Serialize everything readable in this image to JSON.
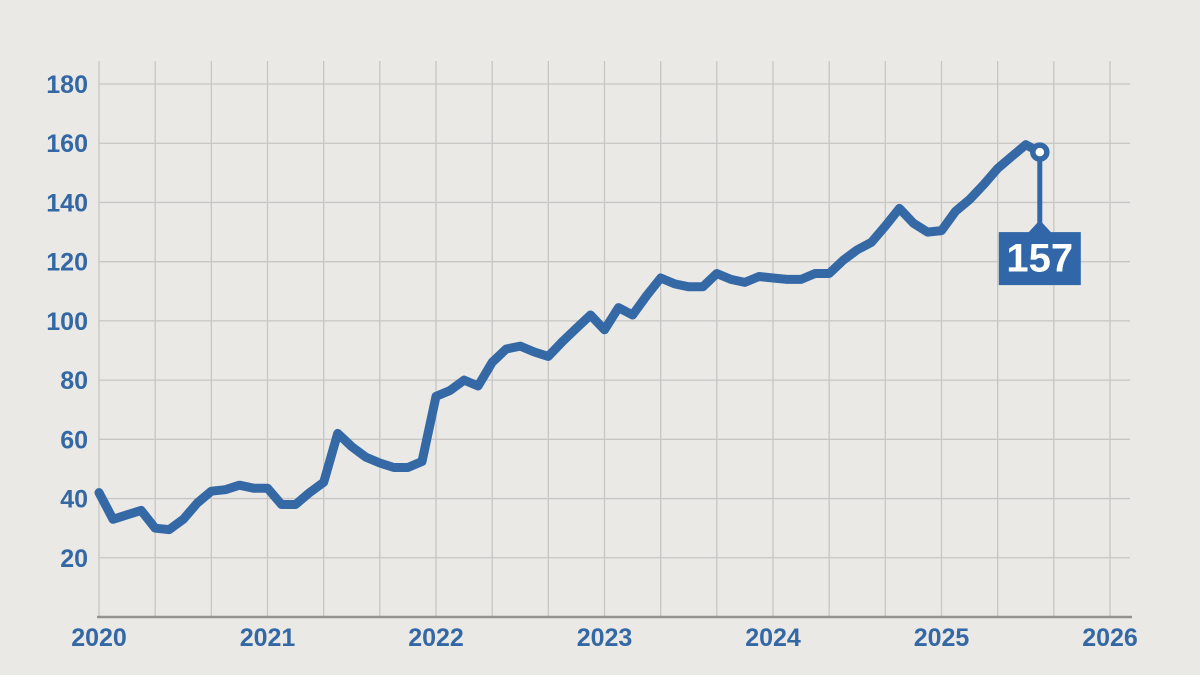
{
  "colors": {
    "background": "#eae9e6",
    "grid": "#c7c6c3",
    "axis_line": "#94938e",
    "accent_blue": "#3569a6",
    "label_text_blue": "#3368a5",
    "callout_box": "#3166a8",
    "callout_text": "#ffffff",
    "marker_fill": "#ffffff"
  },
  "chart_data": {
    "type": "line",
    "title": "",
    "xlabel": "",
    "ylabel": "",
    "legend": "none",
    "grid": "on",
    "x_axis": {
      "tick_labels": [
        "2020",
        "2021",
        "2022",
        "2023",
        "2024",
        "2025",
        "2026"
      ],
      "tick_values": [
        2020,
        2021,
        2022,
        2023,
        2024,
        2025,
        2026
      ],
      "gridlines_per_year": 3,
      "range": [
        2020,
        2026.33
      ]
    },
    "y_axis": {
      "tick_labels": [
        "20",
        "40",
        "60",
        "80",
        "100",
        "120",
        "140",
        "160",
        "180"
      ],
      "tick_values": [
        20,
        40,
        60,
        80,
        100,
        120,
        140,
        160,
        180
      ],
      "range": [
        0,
        188
      ]
    },
    "series": [
      {
        "name": "index",
        "color": "#3569a6",
        "start": {
          "year": 2020,
          "month": 1
        },
        "frequency": "monthly",
        "values_monthly": [
          42,
          33,
          34.5,
          36,
          30,
          29.5,
          33,
          38.5,
          42.5,
          43,
          44.5,
          43.5,
          43.5,
          38,
          38,
          42,
          45.5,
          62,
          57.5,
          54,
          52,
          50.5,
          50.5,
          52.5,
          74.5,
          76.5,
          80,
          78,
          86,
          90.5,
          91.5,
          89.5,
          88,
          93,
          97.5,
          102,
          97,
          104.5,
          102,
          108.5,
          114.5,
          112.5,
          111.5,
          111.5,
          116,
          114,
          113,
          115,
          114.5,
          114,
          114,
          116,
          116,
          120.5,
          124,
          126.5,
          132,
          138,
          133,
          130,
          130.5,
          137,
          141,
          146,
          151.5,
          155.5,
          159.5,
          157
        ]
      }
    ],
    "end_annotation": {
      "label": "157",
      "value": 157,
      "marker": "open-circle"
    }
  }
}
